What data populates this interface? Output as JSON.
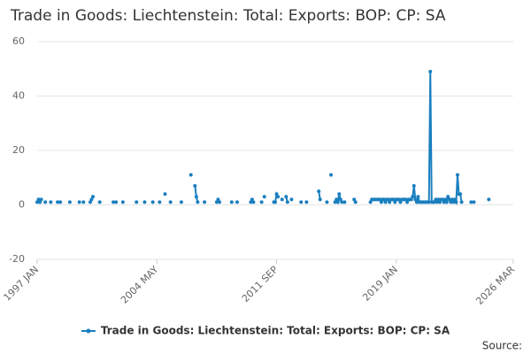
{
  "chart_data": {
    "type": "line",
    "title": "Trade in Goods: Liechtenstein: Total: Exports: BOP: CP: SA",
    "source_label": "Source:",
    "x": [
      "1997 JAN",
      "1997 FEB",
      "1997 MAR",
      "1997 APR",
      "1997 MAY",
      "1997 JUL",
      "1997 AUG",
      "1997 NOV",
      "1997 DEC",
      "1998 APR",
      "1998 MAY",
      "1998 JUN",
      "1998 JUL",
      "1999 JAN",
      "1999 FEB",
      "1999 AUG",
      "1999 SEP",
      "1999 NOV",
      "1999 DEC",
      "2000 APR",
      "2000 MAY",
      "2000 JUN",
      "2000 JUL",
      "2000 NOV",
      "2000 DEC",
      "2001 SEP",
      "2001 OCT",
      "2001 NOV",
      "2001 DEC",
      "2002 APR",
      "2002 MAY",
      "2003 FEB",
      "2003 MAR",
      "2003 AUG",
      "2003 SEP",
      "2004 FEB",
      "2004 MAR",
      "2004 JUL",
      "2004 AUG",
      "2004 NOV",
      "2004 DEC",
      "2005 MAR",
      "2005 APR",
      "2005 NOV",
      "2005 DEC",
      "2006 JUN",
      "2006 JUL",
      "2006 SEP",
      "2006 OCT",
      "2006 NOV",
      "2006 DEC",
      "2007 APR",
      "2007 MAY",
      "2008 JAN",
      "2008 FEB",
      "2008 MAR",
      "2008 APR",
      "2008 DEC",
      "2009 JAN",
      "2009 APR",
      "2009 MAY",
      "2010 FEB",
      "2010 MAR",
      "2010 APR",
      "2010 MAY",
      "2010 OCT",
      "2010 NOV",
      "2010 DEC",
      "2011 JAN",
      "2011 JUL",
      "2011 AUG",
      "2011 SEP",
      "2011 OCT",
      "2011 NOV",
      "2012 JAN",
      "2012 FEB",
      "2012 APR",
      "2012 MAY",
      "2012 JUN",
      "2012 AUG",
      "2012 SEP",
      "2013 MAR",
      "2013 APR",
      "2013 JUL",
      "2013 AUG",
      "2014 APR",
      "2014 MAY",
      "2014 JUN",
      "2014 OCT",
      "2014 NOV",
      "2015 JAN",
      "2015 FEB",
      "2015 APR",
      "2015 MAY",
      "2015 JUN",
      "2015 JUL",
      "2015 AUG",
      "2015 SEP",
      "2015 OCT",
      "2015 NOV",
      "2015 DEC",
      "2016 JUN",
      "2016 JUL",
      "2016 AUG",
      "2017 JUN",
      "2017 JUL",
      "2017 AUG",
      "2017 SEP",
      "2017 OCT",
      "2017 NOV",
      "2017 DEC",
      "2018 JAN",
      "2018 FEB",
      "2018 MAR",
      "2018 APR",
      "2018 MAY",
      "2018 JUN",
      "2018 JUL",
      "2018 AUG",
      "2018 SEP",
      "2018 OCT",
      "2018 NOV",
      "2018 DEC",
      "2019 JAN",
      "2019 FEB",
      "2019 MAR",
      "2019 APR",
      "2019 MAY",
      "2019 JUN",
      "2019 JUL",
      "2019 AUG",
      "2019 SEP",
      "2019 OCT",
      "2019 NOV",
      "2019 DEC",
      "2020 JAN",
      "2020 FEB",
      "2020 MAR",
      "2020 APR",
      "2020 MAY",
      "2020 JUN",
      "2020 JUL",
      "2020 AUG",
      "2020 SEP",
      "2020 OCT",
      "2020 NOV",
      "2020 DEC",
      "2021 JAN",
      "2021 FEB",
      "2021 MAR",
      "2021 APR",
      "2021 MAY",
      "2021 JUN",
      "2021 JUL",
      "2021 AUG",
      "2021 SEP",
      "2021 OCT",
      "2021 NOV",
      "2021 DEC",
      "2022 JAN",
      "2022 FEB",
      "2022 MAR",
      "2022 APR",
      "2022 MAY",
      "2022 JUN",
      "2022 JUL",
      "2022 AUG",
      "2022 SEP",
      "2022 OCT",
      "2022 NOV",
      "2022 DEC",
      "2023 JAN",
      "2023 FEB",
      "2023 AUG",
      "2023 SEP",
      "2023 OCT",
      "2023 NOV",
      "2024 SEP"
    ],
    "series": [
      {
        "name": "Trade in Goods: Liechtenstein: Total: Exports: BOP: CP: SA",
        "color": "#1a7fbf",
        "values": [
          1,
          2,
          1,
          2,
          null,
          1,
          null,
          1,
          null,
          1,
          null,
          1,
          null,
          1,
          null,
          1,
          null,
          1,
          null,
          1,
          2,
          3,
          null,
          1,
          null,
          1,
          null,
          1,
          null,
          1,
          null,
          1,
          null,
          1,
          null,
          1,
          null,
          1,
          null,
          4,
          null,
          1,
          null,
          1,
          null,
          11,
          null,
          7,
          3,
          1,
          null,
          1,
          null,
          1,
          2,
          1,
          null,
          1,
          null,
          1,
          null,
          1,
          2,
          1,
          null,
          1,
          null,
          3,
          null,
          1,
          1,
          4,
          3,
          null,
          2,
          null,
          3,
          1,
          null,
          2,
          null,
          1,
          null,
          1,
          null,
          5,
          2,
          null,
          1,
          null,
          11,
          null,
          1,
          2,
          1,
          4,
          2,
          1,
          null,
          1,
          null,
          2,
          1,
          null,
          1,
          2,
          2,
          2,
          2,
          2,
          2,
          2,
          1,
          2,
          2,
          1,
          2,
          2,
          1,
          2,
          2,
          2,
          1,
          2,
          2,
          2,
          1,
          2,
          2,
          2,
          2,
          1,
          2,
          2,
          2,
          3,
          7,
          2,
          1,
          3,
          1,
          1,
          1,
          1,
          1,
          1,
          1,
          1,
          49,
          1,
          1,
          1,
          2,
          1,
          2,
          1,
          2,
          2,
          1,
          2,
          1,
          3,
          2,
          1,
          2,
          1,
          2,
          1,
          11,
          4,
          4,
          1,
          null,
          1,
          null,
          1,
          null,
          2
        ]
      }
    ],
    "xlim": [
      "1997 JAN",
      "2026 MAR"
    ],
    "xticks": [
      "1997 JAN",
      "2004 MAY",
      "2011 SEP",
      "2019 JAN",
      "2026 MAR"
    ],
    "ylim": [
      -20,
      60
    ],
    "yticks": [
      -20,
      0,
      20,
      40,
      60
    ],
    "grid": true
  }
}
